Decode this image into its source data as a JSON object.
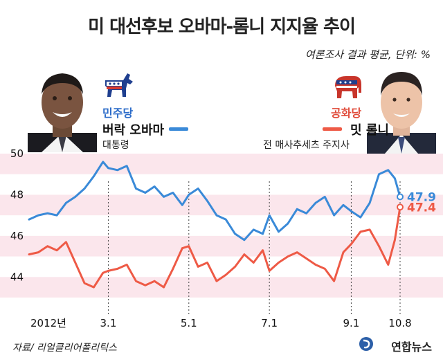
{
  "title": "미 대선후보 오바마-롬니 지지율 추이",
  "subtitle": "여론조사 결과 평균, 단위: %",
  "democrat": {
    "party": "민주당",
    "name": "버락 오바마",
    "role": "대통령",
    "color": "#3a8ad8"
  },
  "republican": {
    "party": "공화당",
    "name": "밋 롬니",
    "role": "전 매사추세츠 주지사",
    "color": "#ee5a46"
  },
  "source": "자료/ 리얼클리어폴리틱스",
  "agency": "연합뉴스",
  "chart_data": {
    "type": "line",
    "x": [
      "2012-01-01",
      "2012-01-08",
      "2012-01-15",
      "2012-01-22",
      "2012-01-29",
      "2012-02-05",
      "2012-02-12",
      "2012-02-19",
      "2012-02-26",
      "2012-03-01",
      "2012-03-08",
      "2012-03-15",
      "2012-03-22",
      "2012-03-29",
      "2012-04-05",
      "2012-04-12",
      "2012-04-19",
      "2012-04-26",
      "2012-05-01",
      "2012-05-08",
      "2012-05-15",
      "2012-05-22",
      "2012-05-29",
      "2012-06-05",
      "2012-06-12",
      "2012-06-19",
      "2012-06-26",
      "2012-07-01",
      "2012-07-08",
      "2012-07-15",
      "2012-07-22",
      "2012-07-29",
      "2012-08-05",
      "2012-08-12",
      "2012-08-19",
      "2012-08-26",
      "2012-09-01",
      "2012-09-08",
      "2012-09-15",
      "2012-09-22",
      "2012-09-29",
      "2012-10-04",
      "2012-10-08"
    ],
    "x_tick_labels": [
      "2012년",
      "3.1",
      "5.1",
      "7.1",
      "9.1",
      "10.8"
    ],
    "x_tick_dates": [
      "2012-01-01",
      "2012-03-01",
      "2012-05-01",
      "2012-07-01",
      "2012-09-01",
      "2012-10-08"
    ],
    "series": [
      {
        "name": "버락 오바마",
        "values": [
          46.8,
          47.0,
          47.1,
          47.0,
          47.6,
          47.9,
          48.3,
          48.9,
          49.6,
          49.3,
          49.2,
          49.4,
          48.3,
          48.1,
          48.4,
          47.9,
          48.1,
          47.5,
          48.0,
          48.3,
          47.7,
          47.0,
          46.8,
          46.1,
          45.8,
          46.3,
          46.1,
          47.0,
          46.2,
          46.6,
          47.3,
          47.1,
          47.6,
          47.9,
          47.0,
          47.5,
          47.2,
          46.9,
          47.6,
          49.0,
          49.2,
          48.8,
          47.9
        ],
        "end_label": "47.9"
      },
      {
        "name": "밋 롬니",
        "values": [
          45.1,
          45.2,
          45.5,
          45.3,
          45.7,
          44.7,
          43.7,
          43.5,
          44.2,
          44.3,
          44.4,
          44.6,
          43.8,
          43.6,
          43.8,
          43.5,
          44.4,
          45.4,
          45.5,
          44.5,
          44.7,
          43.8,
          44.1,
          44.5,
          45.1,
          44.7,
          45.3,
          44.3,
          44.7,
          45.0,
          45.2,
          44.9,
          44.6,
          44.4,
          43.8,
          45.2,
          45.6,
          46.2,
          46.3,
          45.5,
          44.6,
          45.8,
          47.4
        ],
        "end_label": "47.4"
      }
    ],
    "ylim": [
      43,
      50
    ],
    "y_ticks": [
      44,
      46,
      48,
      50
    ],
    "grid": true
  }
}
